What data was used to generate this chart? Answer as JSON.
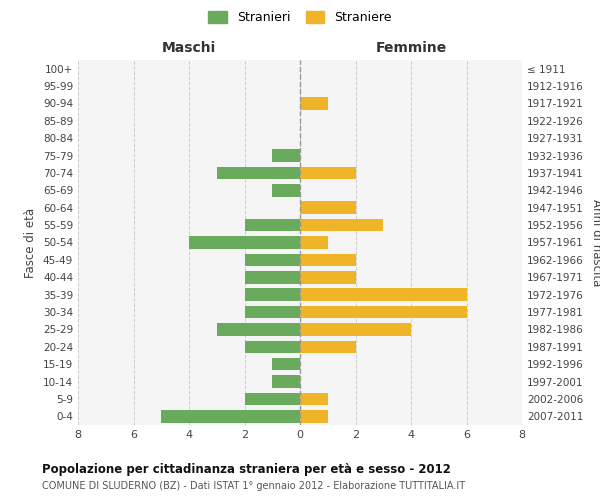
{
  "age_groups": [
    "100+",
    "95-99",
    "90-94",
    "85-89",
    "80-84",
    "75-79",
    "70-74",
    "65-69",
    "60-64",
    "55-59",
    "50-54",
    "45-49",
    "40-44",
    "35-39",
    "30-34",
    "25-29",
    "20-24",
    "15-19",
    "10-14",
    "5-9",
    "0-4"
  ],
  "birth_years": [
    "≤ 1911",
    "1912-1916",
    "1917-1921",
    "1922-1926",
    "1927-1931",
    "1932-1936",
    "1937-1941",
    "1942-1946",
    "1947-1951",
    "1952-1956",
    "1957-1961",
    "1962-1966",
    "1967-1971",
    "1972-1976",
    "1977-1981",
    "1982-1986",
    "1987-1991",
    "1992-1996",
    "1997-2001",
    "2002-2006",
    "2007-2011"
  ],
  "males": [
    0,
    0,
    0,
    0,
    0,
    1,
    3,
    1,
    0,
    2,
    4,
    2,
    2,
    2,
    2,
    3,
    2,
    1,
    1,
    2,
    5
  ],
  "females": [
    0,
    0,
    1,
    0,
    0,
    0,
    2,
    0,
    2,
    3,
    1,
    2,
    2,
    6,
    6,
    4,
    2,
    0,
    0,
    1,
    1
  ],
  "male_color": "#6aaa5c",
  "female_color": "#f0b429",
  "background_color": "#f5f5f5",
  "grid_color": "#cccccc",
  "title": "Popolazione per cittadinanza straniera per età e sesso - 2012",
  "subtitle": "COMUNE DI SLUDERNO (BZ) - Dati ISTAT 1° gennaio 2012 - Elaborazione TUTTITALIA.IT",
  "xlabel_left": "Maschi",
  "xlabel_right": "Femmine",
  "ylabel_left": "Fasce di età",
  "ylabel_right": "Anni di nascita",
  "legend_male": "Stranieri",
  "legend_female": "Straniere",
  "xlim": 8
}
